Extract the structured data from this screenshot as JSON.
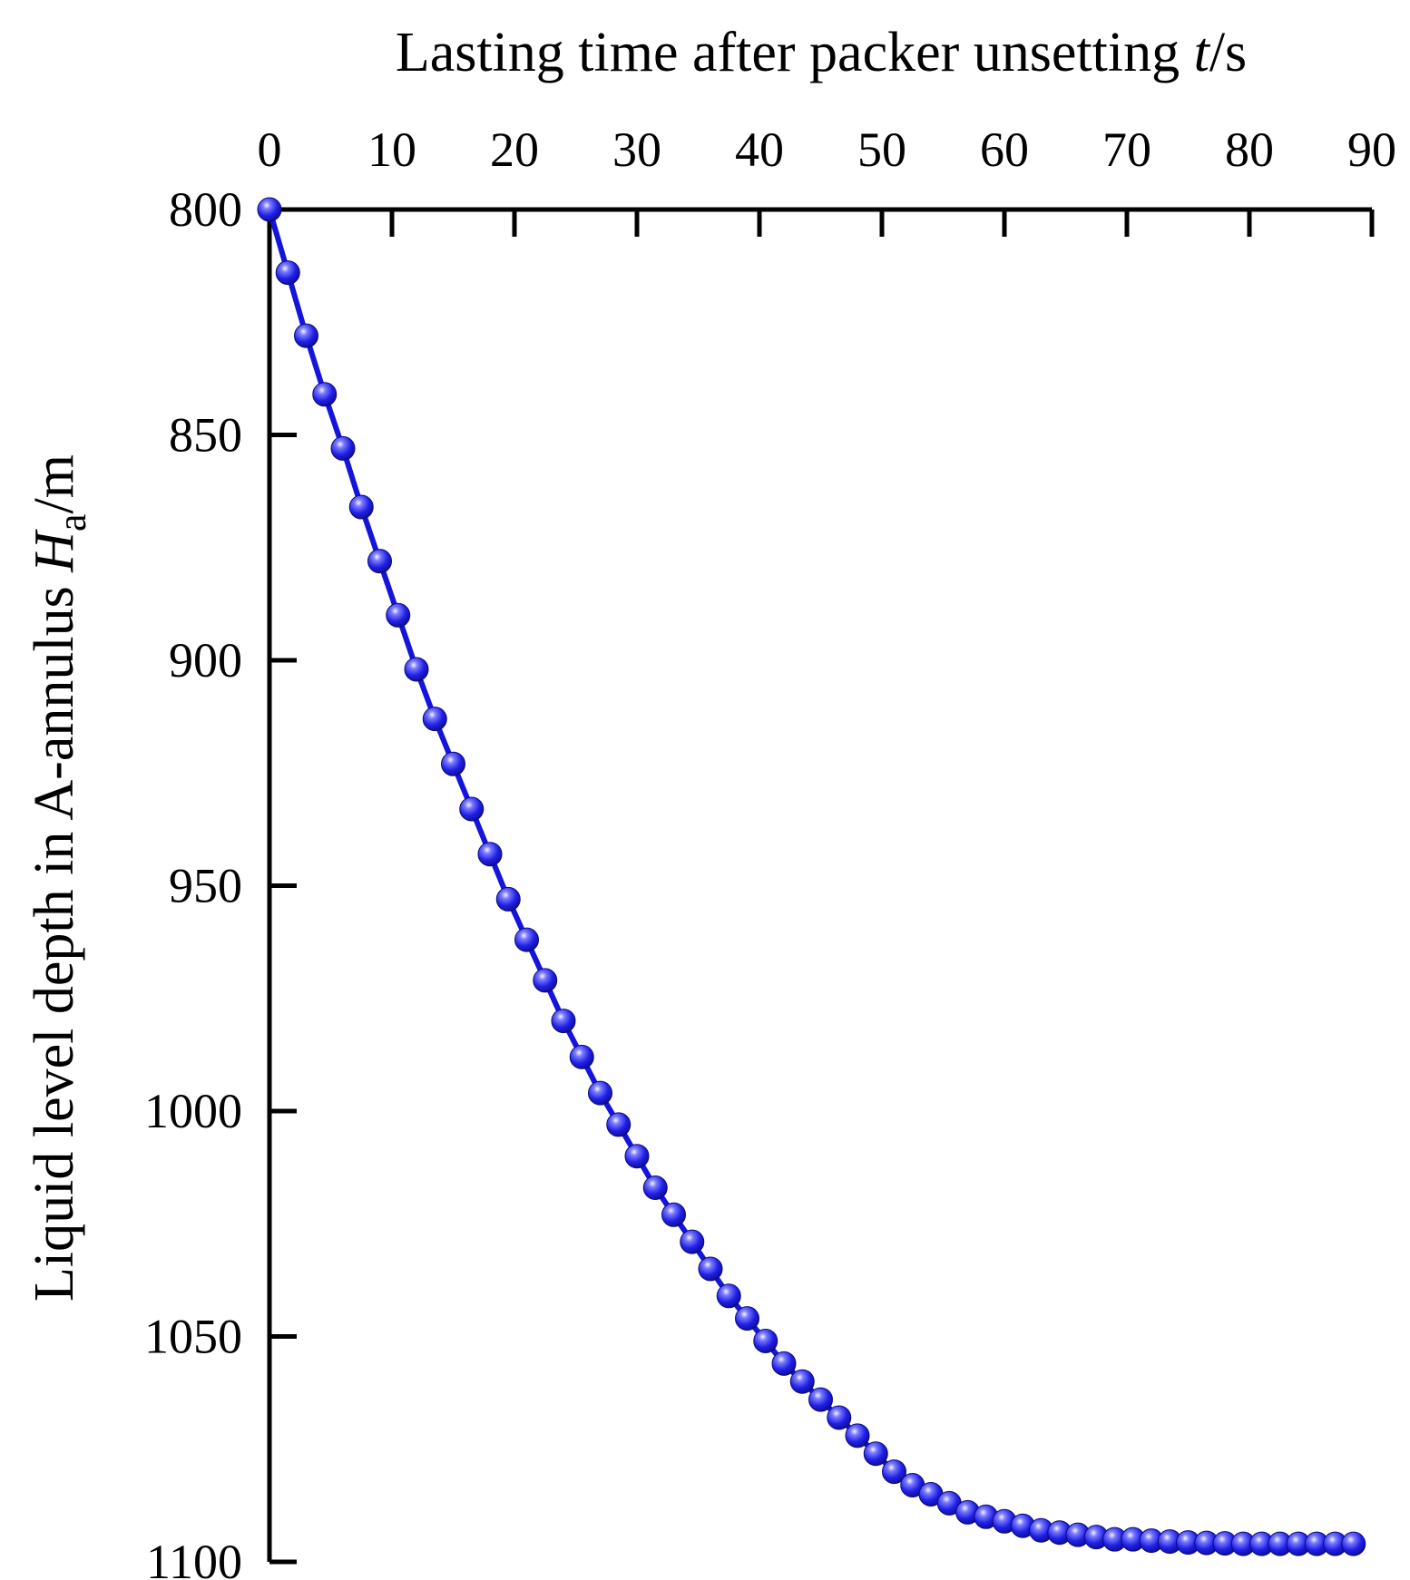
{
  "chart_data": {
    "type": "line",
    "title": "",
    "xlabel": {
      "text": "Lasting time after packer unsetting ",
      "var": "t",
      "unit": "/s"
    },
    "ylabel": {
      "text": "Liquid level depth in A-annulus ",
      "var": "H",
      "sub": "a",
      "unit": "/m"
    },
    "x_axis_position": "top",
    "y_inverted": true,
    "xlim": [
      0,
      90
    ],
    "ylim": [
      800,
      1100
    ],
    "x_ticks": [
      0,
      10,
      20,
      30,
      40,
      50,
      60,
      70,
      80,
      90
    ],
    "y_ticks": [
      800,
      850,
      900,
      950,
      1000,
      1050,
      1100
    ],
    "grid": false,
    "legend": "none",
    "series": [
      {
        "color": "#1414dc",
        "marker": "sphere",
        "x": [
          0,
          1.5,
          3,
          4.5,
          6,
          7.5,
          9,
          10.5,
          12,
          13.5,
          15,
          16.5,
          18,
          19.5,
          21,
          22.5,
          24,
          25.5,
          27,
          28.5,
          30,
          31.5,
          33,
          34.5,
          36,
          37.5,
          39,
          40.5,
          42,
          43.5,
          45,
          46.5,
          48,
          49.5,
          51,
          52.5,
          54,
          55.5,
          57,
          58.5,
          60,
          61.5,
          63,
          64.5,
          66,
          67.5,
          69,
          70.5,
          72,
          73.5,
          75,
          76.5,
          78,
          79.5,
          81,
          82.5,
          84,
          85.5,
          87,
          88.5
        ],
        "y": [
          800,
          814,
          828,
          841,
          853,
          866,
          878,
          890,
          902,
          913,
          923,
          933,
          943,
          953,
          962,
          971,
          980,
          988,
          996,
          1003,
          1010,
          1017,
          1023,
          1029,
          1035,
          1041,
          1046,
          1051,
          1056,
          1060,
          1064,
          1068,
          1072,
          1076,
          1080,
          1083,
          1085,
          1087,
          1089,
          1090,
          1091,
          1092,
          1093,
          1093.5,
          1094,
          1094.5,
          1095,
          1095,
          1095.3,
          1095.5,
          1095.7,
          1095.8,
          1095.9,
          1096,
          1096,
          1096,
          1096,
          1096,
          1096,
          1096
        ]
      }
    ]
  }
}
